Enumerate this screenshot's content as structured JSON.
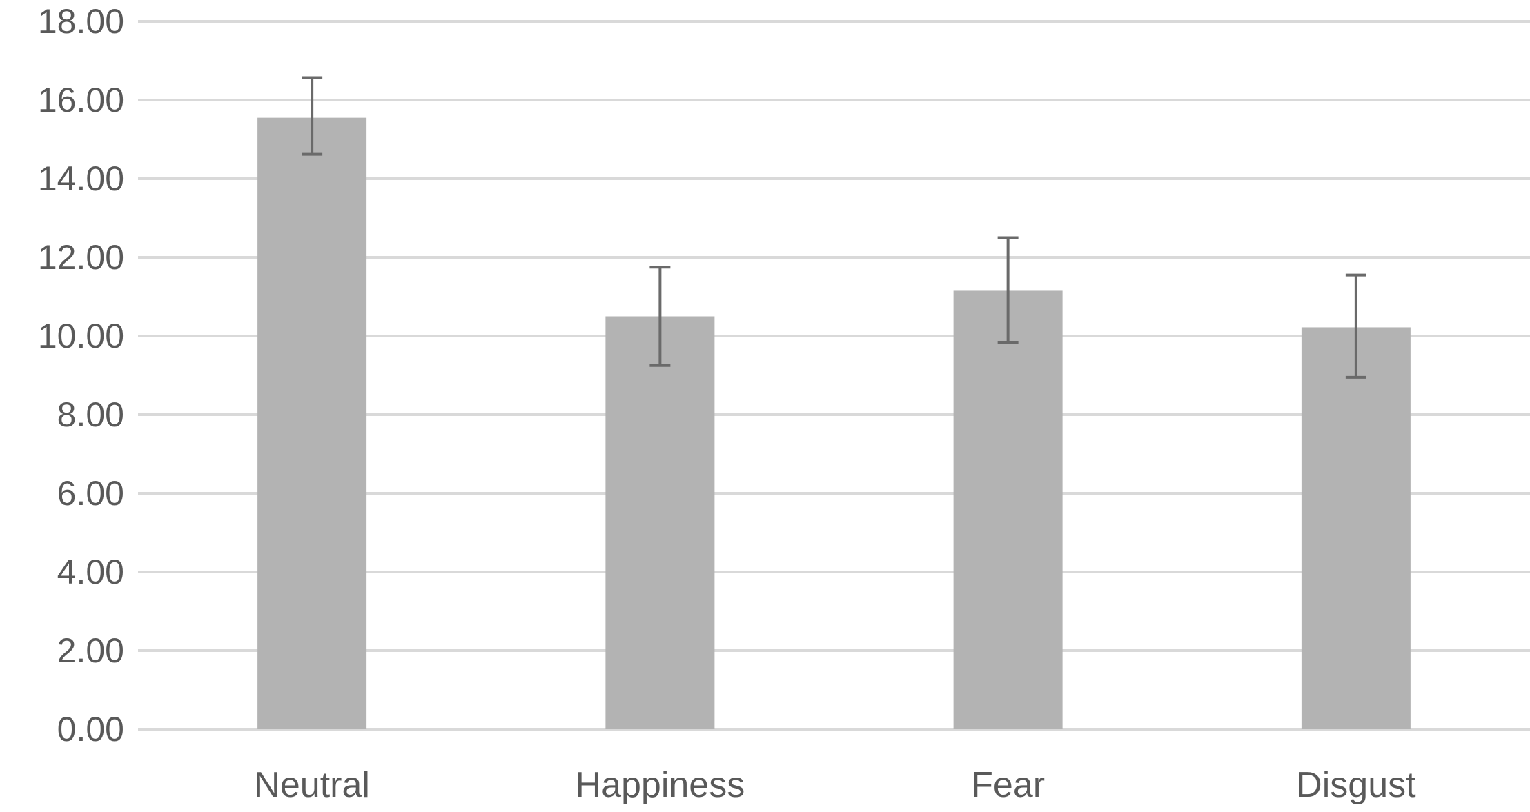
{
  "chart_data": {
    "type": "bar",
    "title": "",
    "xlabel": "",
    "ylabel": "",
    "categories": [
      "Neutral",
      "Happiness",
      "Fear",
      "Disgust"
    ],
    "values": [
      15.55,
      10.5,
      11.15,
      10.22
    ],
    "error_bars": [
      {
        "upper": 16.57,
        "lower": 14.62
      },
      {
        "upper": 11.75,
        "lower": 9.25
      },
      {
        "upper": 12.5,
        "lower": 9.83
      },
      {
        "upper": 11.55,
        "lower": 8.95
      }
    ],
    "ylim": [
      0,
      18
    ],
    "yticks": [
      "0.00",
      "2.00",
      "4.00",
      "6.00",
      "8.00",
      "10.00",
      "12.00",
      "14.00",
      "16.00",
      "18.00"
    ],
    "grid": true,
    "legend": "none",
    "colors": {
      "bar": "#b3b3b3",
      "error_bar": "#6a6a6a",
      "grid": "#d9d9d9",
      "text": "#595959"
    }
  }
}
